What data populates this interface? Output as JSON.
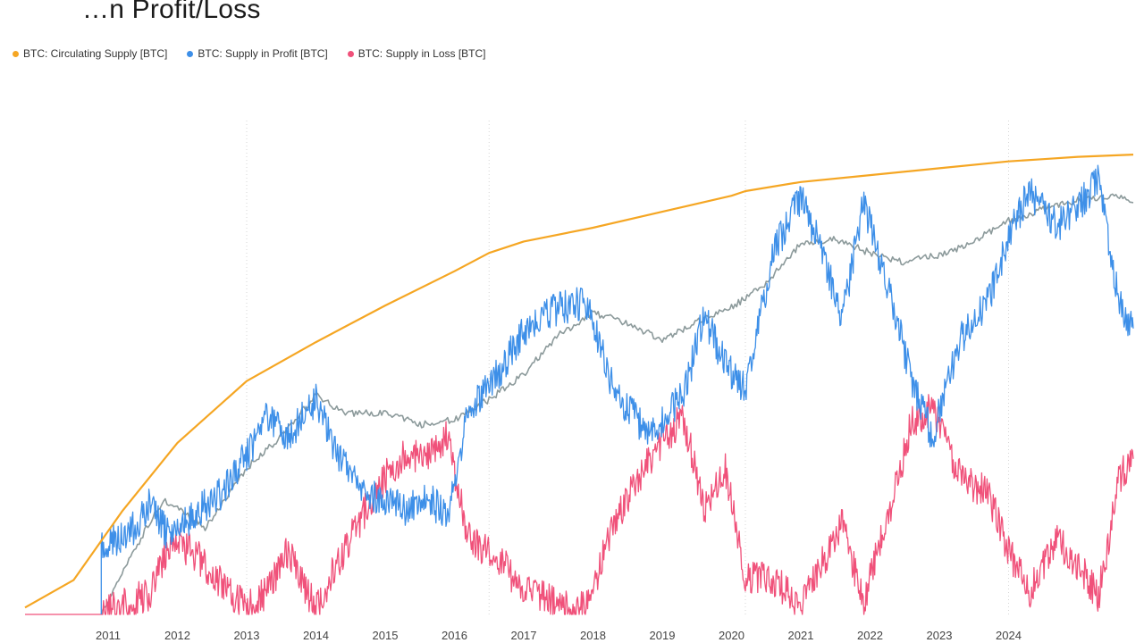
{
  "page": {
    "title": "…n Profit/Loss"
  },
  "chart_data": {
    "type": "line",
    "title": "…n Profit/Loss",
    "xlabel": "",
    "ylabel": "",
    "legend_position": "top-left",
    "grid": "vertical dotted",
    "x_range": [
      2009.8,
      2025.8
    ],
    "y_range": [
      0,
      21000000
    ],
    "x_tick_labels": [
      {
        "x": 2011,
        "label": "2011"
      },
      {
        "x": 2012,
        "label": "2012"
      },
      {
        "x": 2013,
        "label": "2013"
      },
      {
        "x": 2014,
        "label": "2014"
      },
      {
        "x": 2015,
        "label": "2015"
      },
      {
        "x": 2016,
        "label": "2016"
      },
      {
        "x": 2017,
        "label": "2017"
      },
      {
        "x": 2018,
        "label": "2018"
      },
      {
        "x": 2019,
        "label": "2019"
      },
      {
        "x": 2020,
        "label": "2020"
      },
      {
        "x": 2021,
        "label": "2021"
      },
      {
        "x": 2022,
        "label": "2022"
      },
      {
        "x": 2023,
        "label": "2023"
      },
      {
        "x": 2024,
        "label": "2024"
      }
    ],
    "gridline_years": [
      2013,
      2016.5,
      2020.2,
      2024
    ],
    "series": [
      {
        "name": "BTC: Circulating Supply [BTC]",
        "color": "#f5a623",
        "points": [
          [
            2009.8,
            300000
          ],
          [
            2010.5,
            1500000
          ],
          [
            2011.2,
            4500000
          ],
          [
            2012,
            7500000
          ],
          [
            2013,
            10200000
          ],
          [
            2014,
            11900000
          ],
          [
            2015,
            13500000
          ],
          [
            2016,
            15000000
          ],
          [
            2016.5,
            15800000
          ],
          [
            2017,
            16300000
          ],
          [
            2018,
            16900000
          ],
          [
            2019,
            17600000
          ],
          [
            2020,
            18300000
          ],
          [
            2020.2,
            18500000
          ],
          [
            2021,
            18900000
          ],
          [
            2022,
            19200000
          ],
          [
            2023,
            19500000
          ],
          [
            2024,
            19800000
          ],
          [
            2024.5,
            19900000
          ],
          [
            2025,
            20000000
          ],
          [
            2025.8,
            20100000
          ]
        ]
      },
      {
        "name": "BTC: Supply in Profit [BTC]",
        "color": "#3d8fe8",
        "points": [
          [
            2010.9,
            0
          ],
          [
            2010.9,
            3000000
          ],
          [
            2011.3,
            3500000
          ],
          [
            2011.6,
            4800000
          ],
          [
            2011.9,
            3300000
          ],
          [
            2012.2,
            4300000
          ],
          [
            2012.6,
            5200000
          ],
          [
            2013,
            7000000
          ],
          [
            2013.3,
            8600000
          ],
          [
            2013.6,
            7700000
          ],
          [
            2014,
            9400000
          ],
          [
            2014.3,
            7000000
          ],
          [
            2014.7,
            5300000
          ],
          [
            2015,
            5000000
          ],
          [
            2015.3,
            4600000
          ],
          [
            2015.6,
            5100000
          ],
          [
            2015.9,
            4300000
          ],
          [
            2016.2,
            9000000
          ],
          [
            2016.6,
            10400000
          ],
          [
            2017,
            12400000
          ],
          [
            2017.5,
            13400000
          ],
          [
            2017.9,
            13600000
          ],
          [
            2018.3,
            9800000
          ],
          [
            2018.8,
            7900000
          ],
          [
            2019.3,
            9500000
          ],
          [
            2019.6,
            13000000
          ],
          [
            2019.9,
            11000000
          ],
          [
            2020.2,
            9800000
          ],
          [
            2020.6,
            15800000
          ],
          [
            2021,
            18200000
          ],
          [
            2021.3,
            16000000
          ],
          [
            2021.6,
            12900000
          ],
          [
            2021.9,
            18000000
          ],
          [
            2022.3,
            14000000
          ],
          [
            2022.6,
            10200000
          ],
          [
            2022.9,
            7800000
          ],
          [
            2023.3,
            12000000
          ],
          [
            2023.7,
            13600000
          ],
          [
            2024,
            16500000
          ],
          [
            2024.3,
            18500000
          ],
          [
            2024.7,
            17000000
          ],
          [
            2025,
            17800000
          ],
          [
            2025.3,
            19000000
          ],
          [
            2025.6,
            13500000
          ],
          [
            2025.8,
            12500000
          ]
        ]
      },
      {
        "name": "BTC: Supply in Loss [BTC]",
        "color": "#f0517a",
        "points": [
          [
            2009.8,
            0
          ],
          [
            2010.9,
            0
          ],
          [
            2011.3,
            500000
          ],
          [
            2011.6,
            900000
          ],
          [
            2011.9,
            3200000
          ],
          [
            2012.2,
            2800000
          ],
          [
            2012.6,
            1500000
          ],
          [
            2013,
            300000
          ],
          [
            2013.3,
            1000000
          ],
          [
            2013.6,
            2800000
          ],
          [
            2014,
            200000
          ],
          [
            2014.3,
            2200000
          ],
          [
            2014.7,
            4500000
          ],
          [
            2015,
            6000000
          ],
          [
            2015.3,
            7000000
          ],
          [
            2015.6,
            6800000
          ],
          [
            2015.9,
            7800000
          ],
          [
            2016.2,
            3300000
          ],
          [
            2016.6,
            2600000
          ],
          [
            2017,
            1000000
          ],
          [
            2017.5,
            500000
          ],
          [
            2017.9,
            200000
          ],
          [
            2018.3,
            4000000
          ],
          [
            2018.8,
            6700000
          ],
          [
            2019.3,
            8700000
          ],
          [
            2019.6,
            4600000
          ],
          [
            2019.9,
            6500000
          ],
          [
            2020.2,
            1600000
          ],
          [
            2020.6,
            1600000
          ],
          [
            2021,
            200000
          ],
          [
            2021.3,
            2200000
          ],
          [
            2021.6,
            4000000
          ],
          [
            2021.9,
            500000
          ],
          [
            2022.3,
            4700000
          ],
          [
            2022.6,
            8400000
          ],
          [
            2022.9,
            9000000
          ],
          [
            2023.3,
            6000000
          ],
          [
            2023.7,
            5300000
          ],
          [
            2024,
            2800000
          ],
          [
            2024.3,
            1000000
          ],
          [
            2024.7,
            3300000
          ],
          [
            2025,
            2200000
          ],
          [
            2025.3,
            800000
          ],
          [
            2025.6,
            6000000
          ],
          [
            2025.8,
            6800000
          ]
        ]
      },
      {
        "name": "Supply in Profit (smoothed)",
        "color": "#8c9a9b",
        "legend": false,
        "points": [
          [
            2010.9,
            0
          ],
          [
            2011.3,
            2400000
          ],
          [
            2011.6,
            4000000
          ],
          [
            2011.8,
            5000000
          ],
          [
            2012,
            4600000
          ],
          [
            2012.4,
            3800000
          ],
          [
            2012.7,
            5000000
          ],
          [
            2013,
            6400000
          ],
          [
            2013.5,
            7800000
          ],
          [
            2014,
            9600000
          ],
          [
            2014.4,
            8800000
          ],
          [
            2015,
            8800000
          ],
          [
            2015.5,
            8300000
          ],
          [
            2016,
            8500000
          ],
          [
            2016.5,
            9400000
          ],
          [
            2017,
            10500000
          ],
          [
            2017.5,
            12200000
          ],
          [
            2018,
            13200000
          ],
          [
            2018.5,
            12700000
          ],
          [
            2019,
            12000000
          ],
          [
            2019.5,
            12800000
          ],
          [
            2020,
            13400000
          ],
          [
            2020.5,
            14500000
          ],
          [
            2021,
            16200000
          ],
          [
            2021.5,
            16400000
          ],
          [
            2022,
            15800000
          ],
          [
            2022.5,
            15400000
          ],
          [
            2023,
            15700000
          ],
          [
            2023.5,
            16300000
          ],
          [
            2024,
            17200000
          ],
          [
            2024.5,
            17700000
          ],
          [
            2025,
            18100000
          ],
          [
            2025.5,
            18300000
          ],
          [
            2025.8,
            18000000
          ]
        ]
      }
    ]
  }
}
